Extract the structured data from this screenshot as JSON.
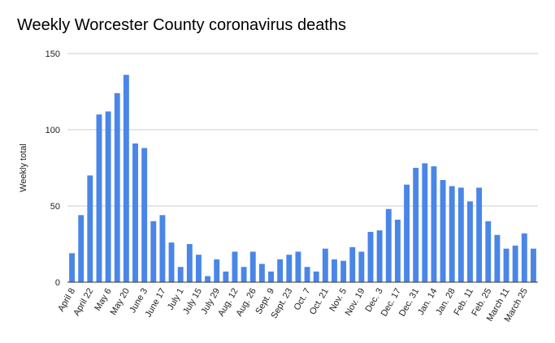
{
  "chart_data": {
    "type": "bar",
    "title": "Weekly Worcester County coronavirus deaths",
    "ylabel": "Weekly total",
    "xlabel": "",
    "ylim": [
      0,
      150
    ],
    "yticks": [
      0,
      50,
      100,
      150
    ],
    "grid": true,
    "bar_color": "#4a86e8",
    "grid_color": "#cccccc",
    "x_tick_labels": [
      "April 8",
      "April 22",
      "May 6",
      "May 20",
      "June 3",
      "June 17",
      "July 1",
      "July 15",
      "July 29",
      "Aug. 12",
      "Aug. 26",
      "Sept. 9",
      "Sept. 23",
      "Oct. 7",
      "Oct. 21",
      "Nov. 5",
      "Nov. 19",
      "Dec. 3",
      "Dec. 17",
      "Dec. 31",
      "Jan. 14",
      "Jan. 28",
      "Feb. 11",
      "Feb. 25",
      "March 11",
      "March 25"
    ],
    "values": [
      19,
      44,
      70,
      110,
      112,
      124,
      136,
      91,
      88,
      40,
      44,
      26,
      10,
      25,
      18,
      4,
      15,
      7,
      20,
      10,
      20,
      12,
      7,
      15,
      18,
      20,
      10,
      7,
      22,
      15,
      14,
      23,
      20,
      33,
      34,
      48,
      41,
      64,
      75,
      78,
      76,
      67,
      63,
      62,
      53,
      62,
      40,
      31,
      22,
      24,
      32,
      22
    ]
  }
}
